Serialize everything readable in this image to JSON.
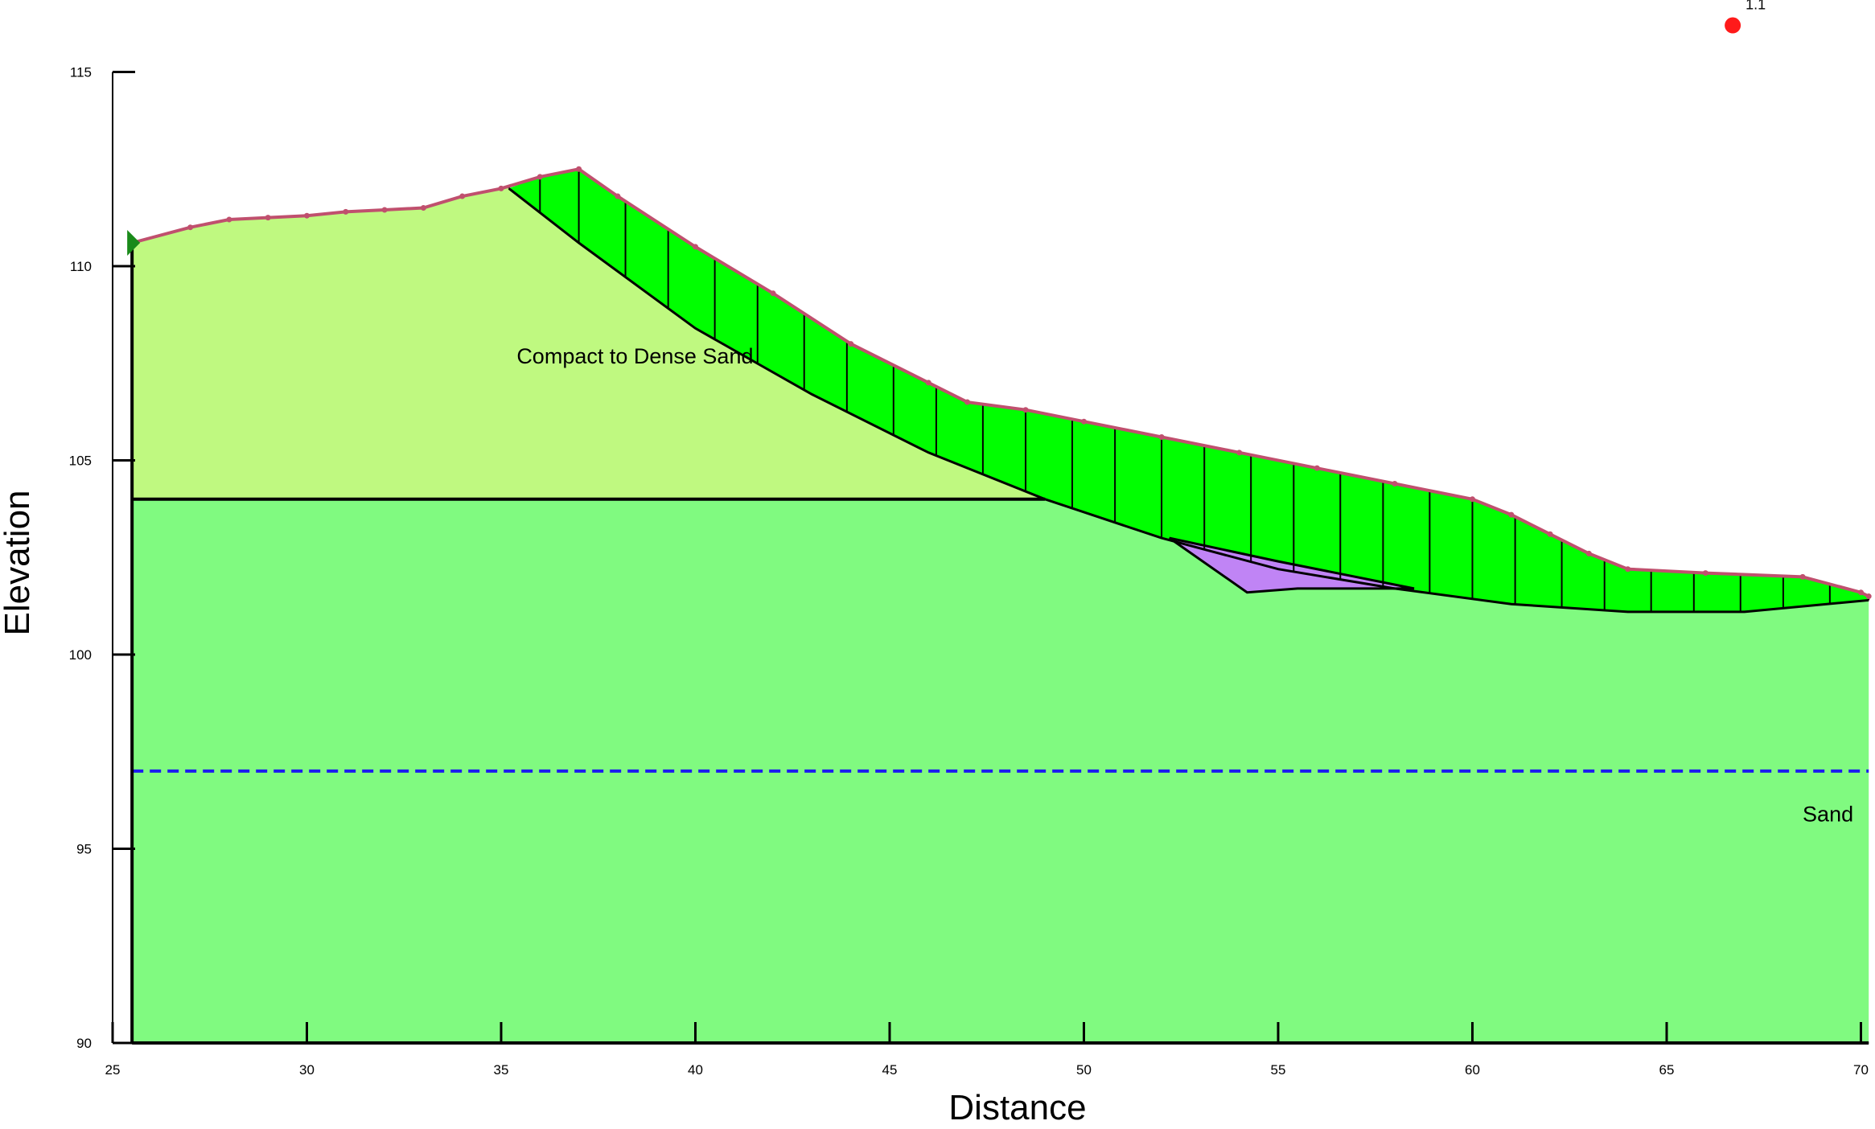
{
  "chart_data": {
    "type": "area",
    "title": "",
    "xlabel": "Distance",
    "ylabel": "Elevation",
    "xlim": [
      25,
      70.2
    ],
    "ylim": [
      90,
      115
    ],
    "xticks": [
      25,
      30,
      35,
      40,
      45,
      50,
      55,
      60,
      65,
      70
    ],
    "yticks": [
      90,
      95,
      100,
      105,
      110,
      115
    ],
    "regions": [
      {
        "label": "Compact to Dense Sand",
        "label_at": [
          35.4,
          107.5
        ],
        "color": "#bff980"
      },
      {
        "label": "Sand",
        "label_at": [
          68.5,
          95.7
        ],
        "color": "#80fa80"
      }
    ],
    "ground_surface": [
      [
        25.5,
        110.6
      ],
      [
        27,
        111.0
      ],
      [
        28,
        111.2
      ],
      [
        29,
        111.25
      ],
      [
        30,
        111.3
      ],
      [
        31,
        111.4
      ],
      [
        32,
        111.45
      ],
      [
        33,
        111.5
      ],
      [
        34,
        111.8
      ],
      [
        35,
        112.0
      ],
      [
        36,
        112.3
      ],
      [
        37,
        112.5
      ],
      [
        38,
        111.8
      ],
      [
        40,
        110.5
      ],
      [
        42,
        109.3
      ],
      [
        44,
        108.0
      ],
      [
        46,
        107.0
      ],
      [
        47,
        106.5
      ],
      [
        48.5,
        106.3
      ],
      [
        50,
        106.0
      ],
      [
        52,
        105.6
      ],
      [
        54,
        105.2
      ],
      [
        56,
        104.8
      ],
      [
        58,
        104.4
      ],
      [
        60,
        104.0
      ],
      [
        61,
        103.6
      ],
      [
        62,
        103.1
      ],
      [
        63,
        102.6
      ],
      [
        64,
        102.2
      ],
      [
        66,
        102.1
      ],
      [
        68.5,
        102.0
      ],
      [
        70,
        101.6
      ],
      [
        70.2,
        101.5
      ]
    ],
    "layer_boundary": [
      [
        25.5,
        104.0
      ],
      [
        49.0,
        104.0
      ]
    ],
    "slip_surface": [
      [
        35.2,
        112.0
      ],
      [
        37,
        110.6
      ],
      [
        40,
        108.4
      ],
      [
        43,
        106.7
      ],
      [
        46,
        105.2
      ],
      [
        49,
        104.0
      ],
      [
        52,
        103.0
      ],
      [
        55,
        102.2
      ],
      [
        58,
        101.7
      ],
      [
        61,
        101.3
      ],
      [
        64,
        101.1
      ],
      [
        67,
        101.1
      ],
      [
        70.2,
        101.4
      ]
    ],
    "slice_x": [
      35.2,
      36.0,
      37.0,
      38.2,
      39.3,
      40.5,
      41.6,
      42.8,
      43.9,
      45.1,
      46.2,
      47.4,
      48.5,
      49.7,
      50.8,
      52.0,
      53.1,
      54.3,
      55.4,
      56.6,
      57.7,
      58.9,
      60.0,
      61.1,
      62.3,
      63.4,
      64.6,
      65.7,
      66.9,
      68.0,
      69.2,
      70.2
    ],
    "weak_zone": [
      [
        52.2,
        103.0
      ],
      [
        54.2,
        101.6
      ],
      [
        55.5,
        101.7
      ],
      [
        58.5,
        101.7
      ],
      [
        55.0,
        102.4
      ]
    ],
    "water_table": [
      [
        25.5,
        97.0
      ],
      [
        70.2,
        97.0
      ]
    ],
    "slip_center": {
      "x": 66.7,
      "y": 116.2,
      "label": "1.1"
    },
    "colors": {
      "upper_layer": "#bff980",
      "lower_layer": "#80fa80",
      "slip_mass": "#00ff00",
      "weak_zone": "#c084f5",
      "ground_line": "#c0506e",
      "water_table": "#1b1bf0",
      "slip_center": "#ff1a1a"
    }
  }
}
